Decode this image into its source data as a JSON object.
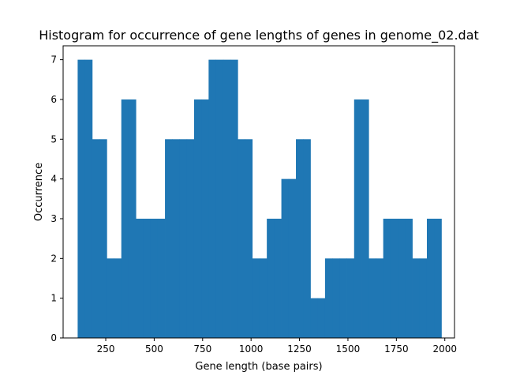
{
  "chart_data": {
    "type": "bar",
    "title": "Histogram for occurrence of gene lengths of genes in genome_02.dat",
    "xlabel": "Gene length (base pairs)",
    "ylabel": "Occurrence",
    "xlim": [
      30,
      2050
    ],
    "ylim": [
      0,
      7.35
    ],
    "xticks": [
      250,
      500,
      750,
      1000,
      1250,
      1500,
      1750,
      2000
    ],
    "yticks": [
      0,
      1,
      2,
      3,
      4,
      5,
      6,
      7
    ],
    "bin_edges": [
      105,
      142.6,
      180.1,
      217.7,
      255.2,
      292.8,
      330.3,
      367.9,
      405.4,
      443.0,
      480.5,
      518.1,
      555.6,
      593.2,
      630.7,
      668.3,
      705.8,
      743.4,
      780.9,
      818.5,
      856.0,
      893.6,
      931.1,
      968.7,
      1006.2,
      1043.8,
      1081.3,
      1118.9,
      1156.4,
      1194.0,
      1231.5,
      1269.1,
      1306.6,
      1344.2,
      1381.7,
      1419.3,
      1456.8,
      1494.4,
      1531.9,
      1569.5,
      1607.0,
      1644.6,
      1682.1,
      1719.7,
      1757.2,
      1794.8,
      1832.3,
      1869.9,
      1907.4,
      1945.0,
      1982.5
    ],
    "values": [
      7,
      7,
      5,
      5,
      2,
      2,
      6,
      6,
      3,
      3,
      3,
      3,
      5,
      5,
      5,
      5,
      6,
      6,
      7,
      7,
      7,
      7,
      5,
      5,
      2,
      2,
      3,
      3,
      4,
      4,
      5,
      5,
      1,
      1,
      2,
      2,
      2,
      2,
      6,
      6,
      2,
      2,
      3,
      3,
      3,
      3,
      2,
      2,
      3,
      3
    ],
    "color": "#1f77b4",
    "grid": false
  }
}
